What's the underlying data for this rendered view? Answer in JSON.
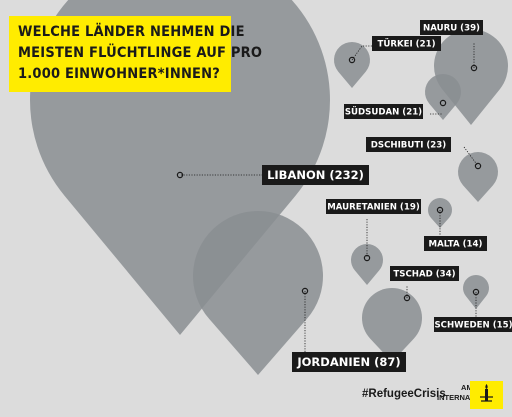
{
  "title_lines": [
    "WELCHE LÄNDER NEHMEN DIE",
    "MEISTEN FLÜCHTLINGE AUF PRO",
    "1.000 EINWOHNER*INNEN?"
  ],
  "hashtag": "#RefugeeCrisis",
  "logo": {
    "line1": "AMNESTY",
    "line2": "INTERNATIONAL"
  },
  "colors": {
    "background": "#dcdcdc",
    "pin": "#8a8e92",
    "accent_yellow": "#ffec00",
    "label_bg": "#1a1a1a",
    "label_text": "#ffffff"
  },
  "chart_data": {
    "type": "bubble-pin",
    "title": "WELCHE LÄNDER NEHMEN DIE MEISTEN FLÜCHTLINGE AUF PRO 1.000 EINWOHNER*INNEN?",
    "categories": [
      "Libanon",
      "Jordanien",
      "Nauru",
      "Tschad",
      "Türkei",
      "Dschibuti",
      "Südsudan",
      "Mauretanien",
      "Schweden",
      "Malta"
    ],
    "values": [
      232,
      87,
      39,
      34,
      21,
      23,
      21,
      19,
      15,
      14
    ],
    "labels": [
      "LIBANON (232)",
      "JORDANIEN (87)",
      "NAURU (39)",
      "TSCHAD (34)",
      "TÜRKEI (21)",
      "DSCHIBUTI (23)",
      "SÜDSUDAN (21)",
      "MAURETANIEN (19)",
      "SCHWEDEN (15)",
      "MALTA (14)"
    ]
  }
}
